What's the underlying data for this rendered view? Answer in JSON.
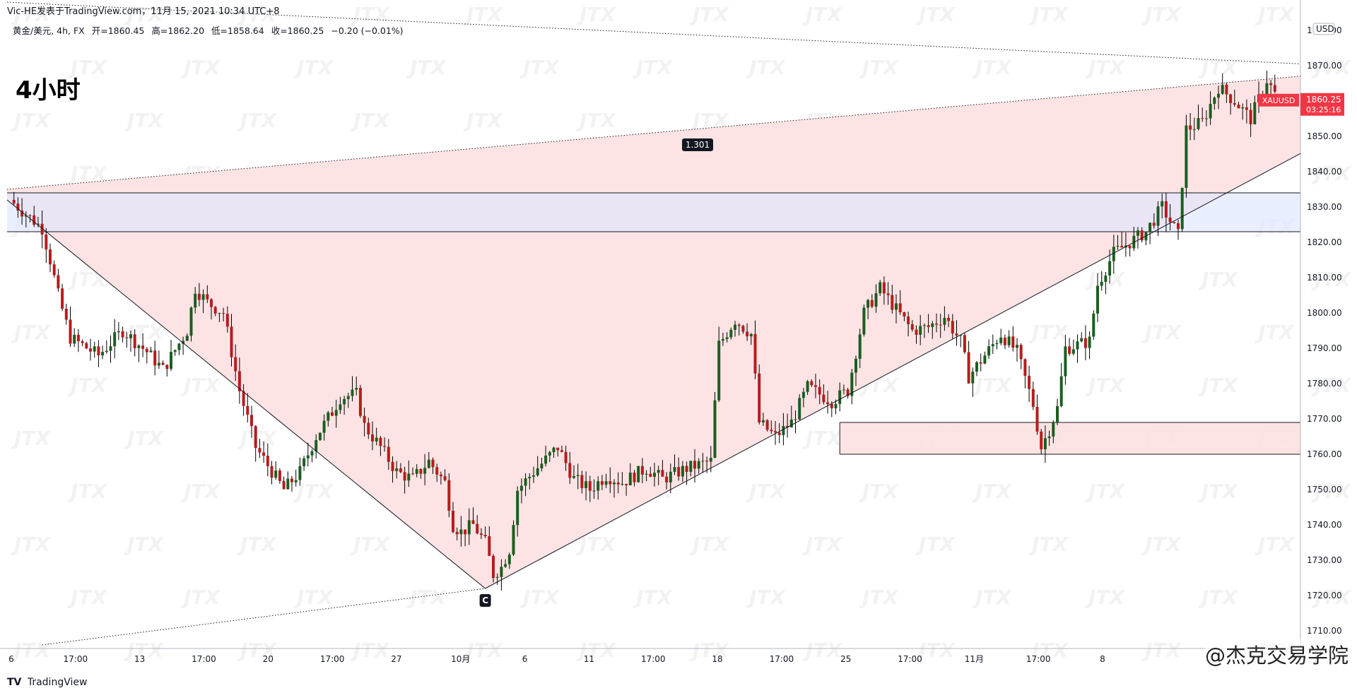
{
  "header": {
    "publisher": "Vic-HE发表于TradingView.com，11月 15, 2021 10:34 UTC+8",
    "symbol": "黄金/美元, 4h, FX",
    "open": "开=1860.45",
    "high": "高=1862.20",
    "low": "低=1858.64",
    "close": "收=1860.25",
    "change": "−0.20 (−0.01%)",
    "timeframe": "4小时"
  },
  "price_axis": {
    "currency": "USD",
    "symbol_tag": "XAUUSD",
    "last_price": "1860.25",
    "countdown": "03:25:16"
  },
  "annotations": {
    "ratio": "1.301",
    "point_c": "C"
  },
  "footer": {
    "brand_icon": "tradingview-logo-icon",
    "brand": "TradingView",
    "watermark": "@杰克交易学院",
    "overlay_mark": "JTX"
  },
  "colors": {
    "bull": "#26a69a",
    "bear": "#ef5350",
    "bull_body": "#1b5e20",
    "bear_body": "#b71c1c",
    "pattern_fill": "#fde1e1",
    "zone_fill": "#dfe7ff",
    "last_price_bg": "#f23645"
  },
  "chart_data": {
    "type": "candlestick",
    "ylim": [
      1705,
      1885
    ],
    "y_ticks": [
      1710,
      1720,
      1730,
      1740,
      1750,
      1760,
      1770,
      1780,
      1790,
      1800,
      1810,
      1820,
      1830,
      1840,
      1850,
      1860,
      1870,
      1880
    ],
    "x_ticks": [
      "6",
      "17:00",
      "13",
      "17:00",
      "20",
      "17:00",
      "27",
      "10月",
      "6",
      "11",
      "17:00",
      "18",
      "17:00",
      "25",
      "17:00",
      "11月",
      "17:00",
      "8"
    ],
    "bars": 220,
    "close_path": [
      [
        0,
        1832
      ],
      [
        8,
        1824
      ],
      [
        10,
        1815
      ],
      [
        12,
        1805
      ],
      [
        15,
        1793
      ],
      [
        22,
        1788
      ],
      [
        28,
        1795
      ],
      [
        34,
        1789
      ],
      [
        38,
        1784
      ],
      [
        44,
        1795
      ],
      [
        46,
        1807
      ],
      [
        49,
        1803
      ],
      [
        53,
        1800
      ],
      [
        57,
        1778
      ],
      [
        61,
        1762
      ],
      [
        68,
        1750
      ],
      [
        72,
        1755
      ],
      [
        76,
        1765
      ],
      [
        80,
        1772
      ],
      [
        82,
        1776
      ],
      [
        86,
        1777
      ],
      [
        88,
        1768
      ],
      [
        92,
        1762
      ],
      [
        96,
        1755
      ],
      [
        100,
        1753
      ],
      [
        104,
        1758
      ],
      [
        108,
        1752
      ],
      [
        110,
        1740
      ],
      [
        112,
        1738
      ],
      [
        115,
        1740
      ],
      [
        118,
        1735
      ],
      [
        120,
        1726
      ],
      [
        122,
        1728
      ],
      [
        124,
        1733
      ],
      [
        126,
        1750
      ],
      [
        130,
        1755
      ],
      [
        136,
        1762
      ],
      [
        140,
        1753
      ],
      [
        144,
        1750
      ],
      [
        148,
        1754
      ],
      [
        152,
        1752
      ],
      [
        158,
        1756
      ],
      [
        162,
        1753
      ],
      [
        168,
        1756
      ],
      [
        174,
        1758
      ],
      [
        176,
        1791
      ],
      [
        180,
        1798
      ],
      [
        184,
        1794
      ],
      [
        186,
        1769
      ],
      [
        190,
        1765
      ],
      [
        194,
        1769
      ],
      [
        198,
        1779
      ],
      [
        204,
        1775
      ],
      [
        208,
        1778
      ],
      [
        212,
        1800
      ],
      [
        216,
        1807
      ],
      [
        220,
        1801
      ],
      [
        224,
        1795
      ],
      [
        228,
        1796
      ],
      [
        232,
        1799
      ],
      [
        236,
        1792
      ],
      [
        238,
        1782
      ],
      [
        242,
        1788
      ],
      [
        246,
        1794
      ],
      [
        250,
        1789
      ],
      [
        254,
        1774
      ],
      [
        256,
        1762
      ],
      [
        258,
        1767
      ],
      [
        260,
        1773
      ],
      [
        262,
        1790
      ],
      [
        268,
        1792
      ],
      [
        270,
        1808
      ],
      [
        274,
        1817
      ],
      [
        282,
        1823
      ],
      [
        286,
        1830
      ],
      [
        290,
        1822
      ],
      [
        292,
        1852
      ],
      [
        296,
        1854
      ],
      [
        300,
        1864
      ],
      [
        304,
        1860
      ],
      [
        308,
        1855
      ],
      [
        312,
        1866
      ],
      [
        314,
        1862
      ]
    ],
    "trend_lines": [
      {
        "name": "neckline-upper-dotted",
        "from": [
          0,
          1835
        ],
        "to": [
          330,
          1868
        ]
      },
      {
        "name": "top-dotted",
        "from": [
          0,
          1888
        ],
        "to": [
          330,
          1870
        ]
      },
      {
        "name": "bottom-dotted",
        "from": [
          8,
          1706
        ],
        "to": [
          118,
          1722
        ]
      },
      {
        "name": "descending",
        "from": [
          0,
          1832
        ],
        "to": [
          118,
          1722
        ]
      },
      {
        "name": "ascending",
        "from": [
          118,
          1722
        ],
        "to": [
          330,
          1851
        ]
      }
    ],
    "zones": [
      {
        "name": "resistance-zone",
        "from": 1823,
        "to": 1834
      },
      {
        "name": "support-zone",
        "from": 1760,
        "to": 1769,
        "start_bar": 206
      }
    ],
    "pattern_label": "1.301"
  }
}
